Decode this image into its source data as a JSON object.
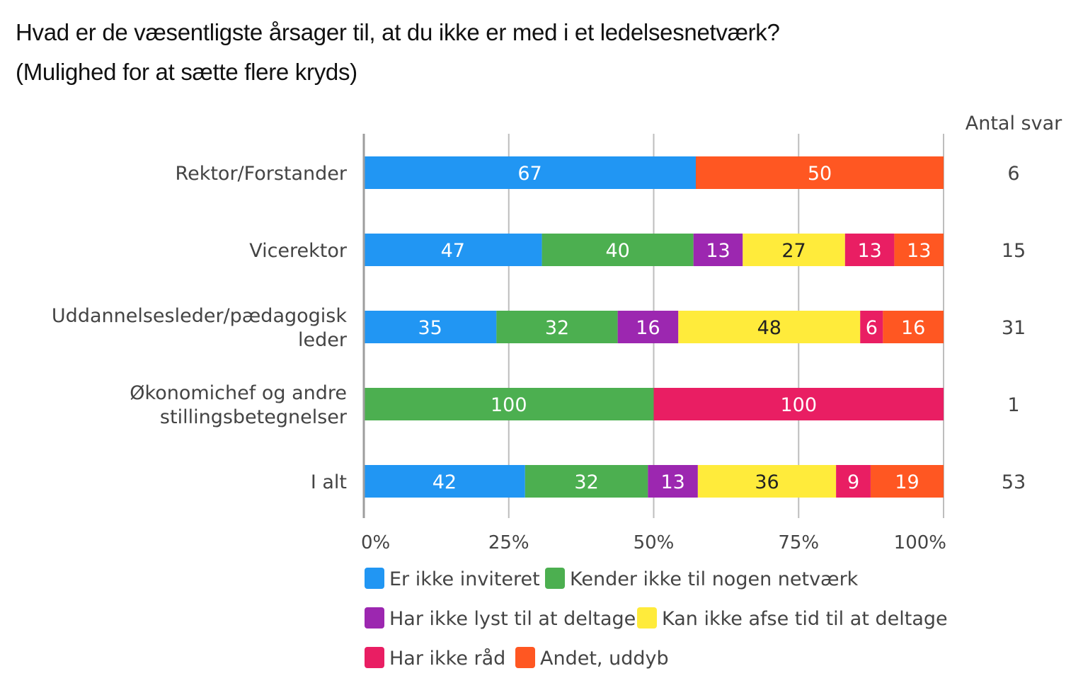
{
  "chart_data": {
    "type": "bar",
    "orientation": "horizontal",
    "stacked": "percent",
    "title": "Hvad er de væsentligste årsager til, at du ikke er med i et ledelsesnetværk?",
    "subtitle": "(Mulighed for at sætte flere kryds)",
    "xlabel": "",
    "ylabel": "",
    "xlim": [
      0,
      100
    ],
    "x_ticks": [
      "0%",
      "25%",
      "50%",
      "75%",
      "100%"
    ],
    "grid": true,
    "legend_position": "bottom",
    "categories": [
      {
        "label_lines": [
          "Rektor/Forstander"
        ],
        "count": "6"
      },
      {
        "label_lines": [
          "Vicerektor"
        ],
        "count": "15"
      },
      {
        "label_lines": [
          "Uddannelsesleder/pædagogisk",
          "leder"
        ],
        "count": "31"
      },
      {
        "label_lines": [
          "Økonomichef og andre",
          "stillingsbetegnelser"
        ],
        "count": "1"
      },
      {
        "label_lines": [
          "I alt"
        ],
        "count": "53"
      }
    ],
    "count_header": "Antal svar",
    "series": [
      {
        "name": "Er ikke inviteret",
        "color": "#2196F3",
        "label_color": "#ffffff",
        "values": [
          67,
          47,
          35,
          0,
          42
        ]
      },
      {
        "name": "Kender ikke til nogen netværk",
        "color": "#4CAF50",
        "label_color": "#ffffff",
        "values": [
          0,
          40,
          32,
          100,
          32
        ]
      },
      {
        "name": "Har ikke lyst til at deltage",
        "color": "#9C27B0",
        "label_color": "#ffffff",
        "values": [
          0,
          13,
          16,
          0,
          13
        ]
      },
      {
        "name": "Kan ikke afse tid  til at deltage",
        "color": "#FFEB3B",
        "label_color": "#222222",
        "values": [
          0,
          27,
          48,
          0,
          36
        ]
      },
      {
        "name": "Har ikke råd",
        "color": "#E91E63",
        "label_color": "#ffffff",
        "values": [
          0,
          13,
          6,
          100,
          9
        ]
      },
      {
        "name": "Andet, uddyb",
        "color": "#FF5722",
        "label_color": "#ffffff",
        "values": [
          50,
          13,
          16,
          0,
          19
        ]
      }
    ]
  }
}
